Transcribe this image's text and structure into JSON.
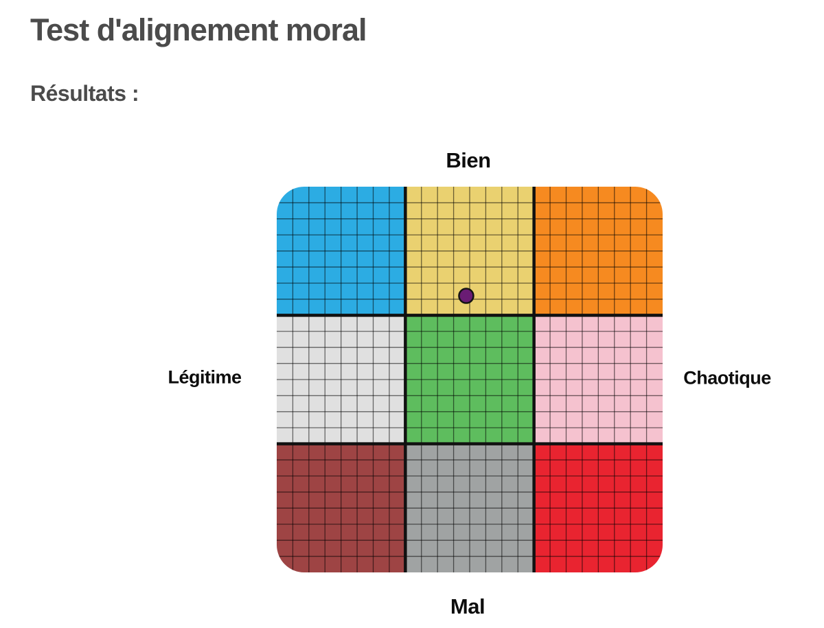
{
  "page": {
    "title": "Test d'alignement moral",
    "subtitle": "Résultats :"
  },
  "chart_data": {
    "type": "scatter",
    "title": "Test d'alignement moral — Résultats",
    "description": "3x3 moral alignment grid (D&D style) with one result point plotted in the Neutral-Good (yellow) section, near its bottom-center",
    "axis_labels": {
      "top": "Bien",
      "bottom": "Mal",
      "left": "Légitime",
      "right": "Chaotique"
    },
    "grid": {
      "size": 562,
      "sections": 3,
      "cells_per_section": 8,
      "corner_radius": 40,
      "minor_line_color": "#000000",
      "minor_line_opacity": 0.55,
      "minor_line_width": 1.3,
      "section_border_color": "#111111",
      "section_border_width": 4.5,
      "section_colors": [
        [
          "#2CACE3",
          "#EAD170",
          "#F68A20"
        ],
        [
          "#E0E0E0",
          "#5EBD5E",
          "#F5C2CF"
        ],
        [
          "#9E4444",
          "#A0A3A3",
          "#E92430"
        ]
      ]
    },
    "result_point": {
      "x": 0.491,
      "y": 0.283,
      "radius": 10.5,
      "fill": "#6A1C74",
      "stroke": "#141414",
      "stroke_width": 2.5
    }
  }
}
